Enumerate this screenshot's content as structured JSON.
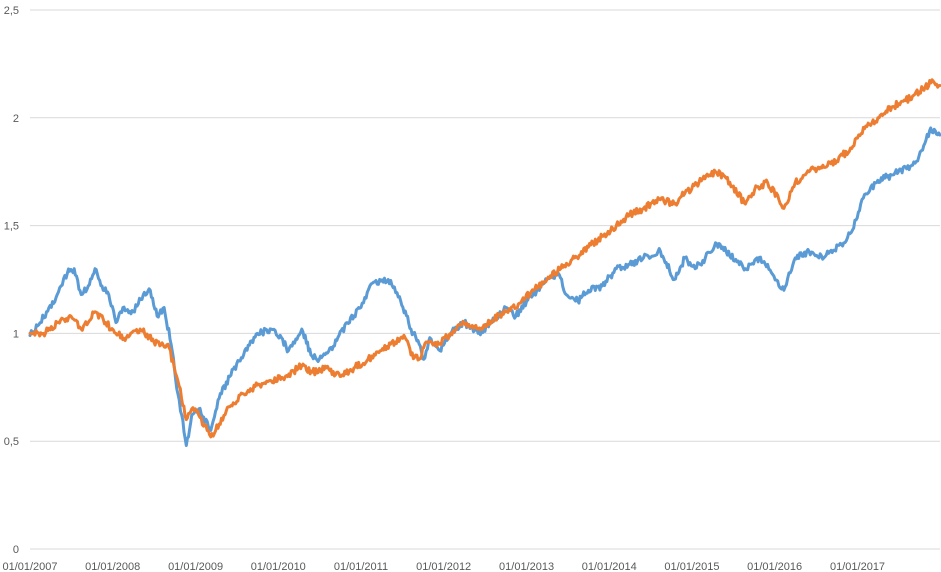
{
  "chart_data": {
    "type": "line",
    "title": "",
    "xlabel": "",
    "ylabel": "",
    "ylim": [
      0,
      2.5
    ],
    "xlim": [
      "2007-01-01",
      "2017-12-31"
    ],
    "grid": "horizontal",
    "legend": "none",
    "y_ticks": [
      {
        "value": 0,
        "label": "0"
      },
      {
        "value": 0.5,
        "label": "0,5"
      },
      {
        "value": 1,
        "label": "1"
      },
      {
        "value": 1.5,
        "label": "1,5"
      },
      {
        "value": 2,
        "label": "2"
      },
      {
        "value": 2.5,
        "label": "2,5"
      }
    ],
    "x_ticks": [
      {
        "value": "2007-01-01",
        "label": "01/01/2007"
      },
      {
        "value": "2008-01-01",
        "label": "01/01/2008"
      },
      {
        "value": "2009-01-01",
        "label": "01/01/2009"
      },
      {
        "value": "2010-01-01",
        "label": "01/01/2010"
      },
      {
        "value": "2011-01-01",
        "label": "01/01/2011"
      },
      {
        "value": "2012-01-01",
        "label": "01/01/2012"
      },
      {
        "value": "2013-01-01",
        "label": "01/01/2013"
      },
      {
        "value": "2014-01-01",
        "label": "01/01/2014"
      },
      {
        "value": "2015-01-01",
        "label": "01/01/2015"
      },
      {
        "value": "2016-01-01",
        "label": "01/01/2016"
      },
      {
        "value": "2017-01-01",
        "label": "01/01/2017"
      }
    ],
    "series": [
      {
        "color": "#5b9bd5",
        "points": [
          [
            "2007-01-01",
            0.99
          ],
          [
            "2007-02-15",
            1.05
          ],
          [
            "2007-03-15",
            1.1
          ],
          [
            "2007-05-01",
            1.18
          ],
          [
            "2007-06-15",
            1.28
          ],
          [
            "2007-07-15",
            1.3
          ],
          [
            "2007-08-15",
            1.18
          ],
          [
            "2007-09-15",
            1.22
          ],
          [
            "2007-10-15",
            1.3
          ],
          [
            "2007-11-15",
            1.22
          ],
          [
            "2007-12-15",
            1.18
          ],
          [
            "2008-01-15",
            1.05
          ],
          [
            "2008-02-15",
            1.12
          ],
          [
            "2008-04-01",
            1.1
          ],
          [
            "2008-05-15",
            1.18
          ],
          [
            "2008-06-15",
            1.2
          ],
          [
            "2008-07-15",
            1.08
          ],
          [
            "2008-08-15",
            1.12
          ],
          [
            "2008-09-15",
            0.95
          ],
          [
            "2008-10-15",
            0.72
          ],
          [
            "2008-11-01",
            0.62
          ],
          [
            "2008-11-21",
            0.48
          ],
          [
            "2008-12-15",
            0.62
          ],
          [
            "2009-01-15",
            0.65
          ],
          [
            "2009-03-09",
            0.55
          ],
          [
            "2009-04-15",
            0.7
          ],
          [
            "2009-06-01",
            0.8
          ],
          [
            "2009-08-01",
            0.9
          ],
          [
            "2009-10-01",
            1.0
          ],
          [
            "2009-12-01",
            1.02
          ],
          [
            "2010-01-15",
            0.98
          ],
          [
            "2010-02-15",
            0.92
          ],
          [
            "2010-04-15",
            1.02
          ],
          [
            "2010-05-25",
            0.9
          ],
          [
            "2010-07-01",
            0.88
          ],
          [
            "2010-09-01",
            0.94
          ],
          [
            "2010-11-01",
            1.05
          ],
          [
            "2011-01-01",
            1.12
          ],
          [
            "2011-02-15",
            1.23
          ],
          [
            "2011-05-01",
            1.25
          ],
          [
            "2011-06-20",
            1.17
          ],
          [
            "2011-08-10",
            1.02
          ],
          [
            "2011-09-15",
            0.95
          ],
          [
            "2011-10-05",
            0.88
          ],
          [
            "2011-11-01",
            0.98
          ],
          [
            "2011-12-15",
            0.92
          ],
          [
            "2012-02-01",
            1.0
          ],
          [
            "2012-04-01",
            1.05
          ],
          [
            "2012-06-01",
            1.0
          ],
          [
            "2012-08-01",
            1.05
          ],
          [
            "2012-10-01",
            1.12
          ],
          [
            "2012-11-15",
            1.08
          ],
          [
            "2013-01-01",
            1.15
          ],
          [
            "2013-02-15",
            1.2
          ],
          [
            "2013-04-01",
            1.25
          ],
          [
            "2013-05-20",
            1.28
          ],
          [
            "2013-06-25",
            1.18
          ],
          [
            "2013-08-15",
            1.15
          ],
          [
            "2013-10-01",
            1.2
          ],
          [
            "2013-12-01",
            1.22
          ],
          [
            "2014-02-01",
            1.3
          ],
          [
            "2014-04-01",
            1.32
          ],
          [
            "2014-06-01",
            1.35
          ],
          [
            "2014-08-15",
            1.38
          ],
          [
            "2014-10-15",
            1.25
          ],
          [
            "2014-12-01",
            1.35
          ],
          [
            "2015-01-15",
            1.3
          ],
          [
            "2015-03-01",
            1.35
          ],
          [
            "2015-04-15",
            1.42
          ],
          [
            "2015-06-01",
            1.38
          ],
          [
            "2015-08-25",
            1.3
          ],
          [
            "2015-10-15",
            1.35
          ],
          [
            "2015-12-01",
            1.32
          ],
          [
            "2016-01-20",
            1.22
          ],
          [
            "2016-02-11",
            1.2
          ],
          [
            "2016-04-01",
            1.35
          ],
          [
            "2016-06-01",
            1.38
          ],
          [
            "2016-07-15",
            1.35
          ],
          [
            "2016-09-01",
            1.38
          ],
          [
            "2016-11-01",
            1.42
          ],
          [
            "2016-12-10",
            1.48
          ],
          [
            "2017-01-15",
            1.6
          ],
          [
            "2017-03-01",
            1.68
          ],
          [
            "2017-05-01",
            1.72
          ],
          [
            "2017-07-01",
            1.75
          ],
          [
            "2017-09-01",
            1.78
          ],
          [
            "2017-10-15",
            1.85
          ],
          [
            "2017-11-15",
            1.94
          ],
          [
            "2017-12-31",
            1.92
          ]
        ]
      },
      {
        "color": "#ed7d31",
        "points": [
          [
            "2007-01-01",
            1.0
          ],
          [
            "2007-03-01",
            1.0
          ],
          [
            "2007-05-01",
            1.05
          ],
          [
            "2007-07-01",
            1.08
          ],
          [
            "2007-08-15",
            1.02
          ],
          [
            "2007-10-15",
            1.1
          ],
          [
            "2007-12-01",
            1.05
          ],
          [
            "2008-01-15",
            1.0
          ],
          [
            "2008-03-01",
            0.98
          ],
          [
            "2008-05-01",
            1.02
          ],
          [
            "2008-07-01",
            0.96
          ],
          [
            "2008-09-01",
            0.95
          ],
          [
            "2008-10-15",
            0.78
          ],
          [
            "2008-11-21",
            0.6
          ],
          [
            "2008-12-15",
            0.65
          ],
          [
            "2009-01-15",
            0.62
          ],
          [
            "2009-03-09",
            0.52
          ],
          [
            "2009-04-15",
            0.58
          ],
          [
            "2009-06-01",
            0.66
          ],
          [
            "2009-08-01",
            0.72
          ],
          [
            "2009-10-01",
            0.76
          ],
          [
            "2009-12-01",
            0.78
          ],
          [
            "2010-02-01",
            0.8
          ],
          [
            "2010-04-15",
            0.85
          ],
          [
            "2010-06-01",
            0.82
          ],
          [
            "2010-08-01",
            0.84
          ],
          [
            "2010-10-01",
            0.8
          ],
          [
            "2010-12-01",
            0.84
          ],
          [
            "2011-02-01",
            0.88
          ],
          [
            "2011-04-01",
            0.92
          ],
          [
            "2011-06-01",
            0.96
          ],
          [
            "2011-07-15",
            0.98
          ],
          [
            "2011-08-10",
            0.9
          ],
          [
            "2011-09-15",
            0.88
          ],
          [
            "2011-10-15",
            0.96
          ],
          [
            "2011-12-01",
            0.94
          ],
          [
            "2012-02-01",
            1.0
          ],
          [
            "2012-04-01",
            1.05
          ],
          [
            "2012-06-01",
            1.02
          ],
          [
            "2012-08-01",
            1.06
          ],
          [
            "2012-10-01",
            1.1
          ],
          [
            "2012-12-01",
            1.14
          ],
          [
            "2013-02-01",
            1.2
          ],
          [
            "2013-04-01",
            1.25
          ],
          [
            "2013-06-01",
            1.3
          ],
          [
            "2013-08-01",
            1.35
          ],
          [
            "2013-10-01",
            1.4
          ],
          [
            "2013-12-01",
            1.45
          ],
          [
            "2014-02-01",
            1.5
          ],
          [
            "2014-04-01",
            1.55
          ],
          [
            "2014-06-01",
            1.58
          ],
          [
            "2014-08-15",
            1.62
          ],
          [
            "2014-10-15",
            1.6
          ],
          [
            "2014-12-01",
            1.65
          ],
          [
            "2015-02-01",
            1.7
          ],
          [
            "2015-04-15",
            1.75
          ],
          [
            "2015-06-01",
            1.72
          ],
          [
            "2015-08-25",
            1.6
          ],
          [
            "2015-10-15",
            1.68
          ],
          [
            "2015-12-01",
            1.7
          ],
          [
            "2016-01-20",
            1.62
          ],
          [
            "2016-02-11",
            1.58
          ],
          [
            "2016-04-01",
            1.7
          ],
          [
            "2016-06-01",
            1.75
          ],
          [
            "2016-08-01",
            1.78
          ],
          [
            "2016-10-01",
            1.8
          ],
          [
            "2016-12-01",
            1.86
          ],
          [
            "2017-02-01",
            1.95
          ],
          [
            "2017-04-01",
            2.0
          ],
          [
            "2017-06-01",
            2.05
          ],
          [
            "2017-08-01",
            2.08
          ],
          [
            "2017-10-01",
            2.12
          ],
          [
            "2017-12-01",
            2.17
          ],
          [
            "2017-12-31",
            2.15
          ]
        ]
      }
    ]
  }
}
